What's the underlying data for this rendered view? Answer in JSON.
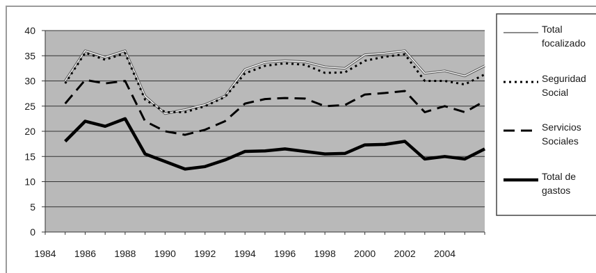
{
  "chart_data": {
    "type": "line",
    "title": "",
    "xlabel": "",
    "ylabel": "",
    "ylim": [
      0,
      40
    ],
    "xlim": [
      1984,
      2006
    ],
    "yticks": [
      "0",
      "5",
      "10",
      "15",
      "20",
      "25",
      "30",
      "35",
      "40"
    ],
    "xticks": [
      "1984",
      "1986",
      "1988",
      "1990",
      "1992",
      "1994",
      "1996",
      "1998",
      "2000",
      "2002",
      "2004"
    ],
    "grid": true,
    "legend_position": "right",
    "x": [
      1985,
      1986,
      1987,
      1988,
      1989,
      1990,
      1991,
      1992,
      1993,
      1994,
      1995,
      1996,
      1997,
      1998,
      1999,
      2000,
      2001,
      2002,
      2003,
      2004,
      2005,
      2006
    ],
    "series": [
      {
        "name": "Total focalizado",
        "legend_lines": [
          "Total",
          "focalizado"
        ],
        "style": "thin",
        "values": [
          30,
          36,
          34.7,
          36,
          27,
          23.5,
          24.3,
          25.3,
          27,
          32.3,
          33.7,
          34,
          33.8,
          32.8,
          32.5,
          35.2,
          35.5,
          36,
          31.5,
          32,
          31,
          33
        ]
      },
      {
        "name": "Seguridad Social",
        "legend_lines": [
          "Seguridad",
          "Social"
        ],
        "style": "dotted",
        "values": [
          29.5,
          35.6,
          34.2,
          35.5,
          26.3,
          23.8,
          23.8,
          25,
          26.8,
          31.5,
          33,
          33.5,
          33.2,
          31.6,
          31.7,
          34,
          34.8,
          35.3,
          30,
          30,
          29.3,
          31.3
        ]
      },
      {
        "name": "Servicios Sociales",
        "legend_lines": [
          "Servicios",
          "Sociales"
        ],
        "style": "dashed",
        "values": [
          25.5,
          30.2,
          29.5,
          30,
          22,
          20,
          19.3,
          20.3,
          22,
          25.5,
          26.4,
          26.6,
          26.5,
          25,
          25.2,
          27.3,
          27.6,
          28,
          23.8,
          25,
          23.8,
          26
        ]
      },
      {
        "name": "Total de gastos",
        "legend_lines": [
          "Total de",
          "gastos"
        ],
        "style": "thick",
        "values": [
          18,
          22,
          21,
          22.5,
          15.5,
          14,
          12.5,
          13,
          14.3,
          16,
          16.1,
          16.5,
          16,
          15.5,
          15.6,
          17.3,
          17.4,
          18,
          14.5,
          15,
          14.5,
          16.5
        ]
      }
    ],
    "colors": {
      "plot_background": "#b9b9b9",
      "grid": "#333333",
      "line": "#000000"
    }
  }
}
